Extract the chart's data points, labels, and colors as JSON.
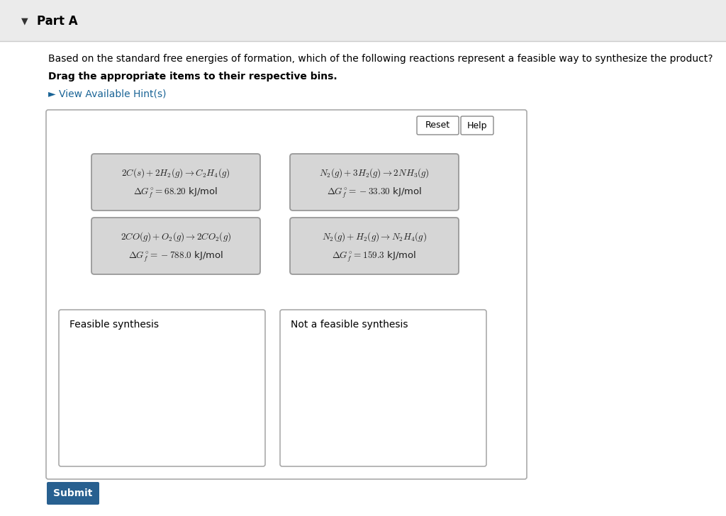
{
  "page_bg": "#f2f2f2",
  "white_bg": "#ffffff",
  "header_bg": "#e8e8e8",
  "header_border": "#cccccc",
  "title_text": "Part A",
  "question_text": "Based on the standard free energies of formation, which of the following reactions represent a feasible way to synthesize the product?",
  "drag_text": "Drag the appropriate items to their respective bins.",
  "hint_text": "► View Available Hint(s)",
  "hint_color": "#1a6496",
  "cards": [
    {
      "line1": "$2C(s) + 2H_2(g)\\rightarrow C_2H_4(g)$",
      "line2": "$\\Delta G_f^{\\circ} = 68.20$ kJ/mol",
      "col": 0,
      "row": 0
    },
    {
      "line1": "$N_2(g) + 3H_2(g)\\rightarrow 2NH_3(g)$",
      "line2": "$\\Delta G_f^{\\circ} = -33.30$ kJ/mol",
      "col": 1,
      "row": 0
    },
    {
      "line1": "$2CO(g) + O_2(g)\\rightarrow 2CO_2(g)$",
      "line2": "$\\Delta G_f^{\\circ} = -788.0$ kJ/mol",
      "col": 0,
      "row": 1
    },
    {
      "line1": "$N_2(g) + H_2(g)\\rightarrow N_2H_4(g)$",
      "line2": "$\\Delta G_f^{\\circ} = 159.3$ kJ/mol",
      "col": 1,
      "row": 1
    }
  ],
  "card_bg": "#d6d6d6",
  "card_edge": "#999999",
  "bin_labels": [
    "Feasible synthesis",
    "Not a feasible synthesis"
  ],
  "submit_text": "Submit",
  "submit_bg": "#286090",
  "reset_text": "Reset",
  "help_text": "Help"
}
